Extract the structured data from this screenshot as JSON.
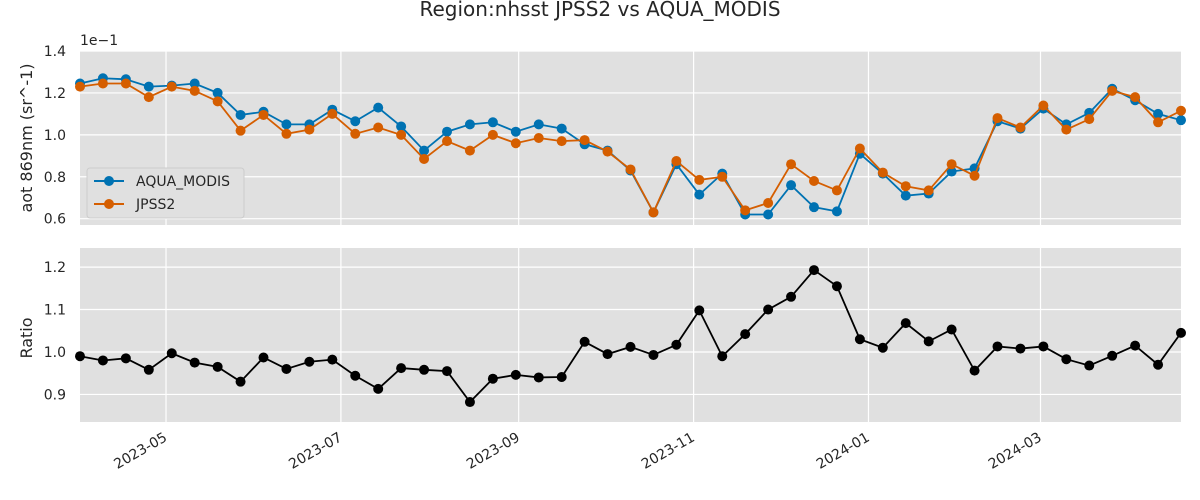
{
  "chart_data": {
    "type": "line",
    "title": "Region:nhsst JPSS2 vs AQUA_MODIS",
    "x": [
      "2023-04-01",
      "2023-04-09",
      "2023-04-17",
      "2023-04-25",
      "2023-05-03",
      "2023-05-11",
      "2023-05-19",
      "2023-05-27",
      "2023-06-04",
      "2023-06-12",
      "2023-06-20",
      "2023-06-28",
      "2023-07-06",
      "2023-07-14",
      "2023-07-22",
      "2023-07-30",
      "2023-08-07",
      "2023-08-15",
      "2023-08-23",
      "2023-08-31",
      "2023-09-08",
      "2023-09-16",
      "2023-09-24",
      "2023-10-02",
      "2023-10-10",
      "2023-10-18",
      "2023-10-26",
      "2023-11-03",
      "2023-11-11",
      "2023-11-19",
      "2023-11-27",
      "2023-12-05",
      "2023-12-13",
      "2023-12-21",
      "2023-12-29",
      "2024-01-06",
      "2024-01-14",
      "2024-01-22",
      "2024-01-30",
      "2024-02-07",
      "2024-02-15",
      "2024-02-23",
      "2024-03-02",
      "2024-03-10",
      "2024-03-18",
      "2024-03-26",
      "2024-04-03",
      "2024-04-11",
      "2024-04-19"
    ],
    "xticks": [
      "2023-05",
      "2023-07",
      "2023-09",
      "2023-11",
      "2024-01",
      "2024-03"
    ],
    "xlim": [
      "2023-04-01",
      "2024-04-19"
    ],
    "top": {
      "ylabel": "aot 869nm (sr^-1)",
      "offset_label": "1e−1",
      "ylim": [
        0.57,
        1.4
      ],
      "yticks": [
        "1.4",
        "1.2",
        "1.0",
        "0.8",
        "0.6"
      ],
      "legend_position": "center-left",
      "series": [
        {
          "name": "AQUA_MODIS",
          "color": "#0072b2",
          "values": [
            1.245,
            1.27,
            1.265,
            1.23,
            1.235,
            1.245,
            1.2,
            1.095,
            1.11,
            1.05,
            1.05,
            1.12,
            1.065,
            1.13,
            1.04,
            0.925,
            1.015,
            1.05,
            1.06,
            1.015,
            1.05,
            1.03,
            0.955,
            0.925,
            0.83,
            0.63,
            0.86,
            0.715,
            0.815,
            0.62,
            0.62,
            0.76,
            0.655,
            0.635,
            0.91,
            0.815,
            0.71,
            0.72,
            0.825,
            0.84,
            1.065,
            1.03,
            1.125,
            1.05,
            1.105,
            1.22,
            1.165,
            1.1,
            1.07
          ]
        },
        {
          "name": "JPSS2",
          "color": "#d55e00",
          "values": [
            1.23,
            1.245,
            1.245,
            1.18,
            1.23,
            1.21,
            1.16,
            1.02,
            1.095,
            1.005,
            1.025,
            1.1,
            1.005,
            1.035,
            1.0,
            0.885,
            0.97,
            0.925,
            1.0,
            0.96,
            0.985,
            0.97,
            0.975,
            0.92,
            0.835,
            0.63,
            0.875,
            0.785,
            0.8,
            0.64,
            0.675,
            0.86,
            0.78,
            0.735,
            0.935,
            0.82,
            0.755,
            0.735,
            0.86,
            0.805,
            1.08,
            1.035,
            1.14,
            1.025,
            1.075,
            1.21,
            1.18,
            1.06,
            1.115
          ]
        }
      ]
    },
    "bottom": {
      "ylabel": "Ratio",
      "ylim": [
        0.835,
        1.245
      ],
      "yticks": [
        "1.2",
        "1.1",
        "1.0",
        "0.9"
      ],
      "series": [
        {
          "color": "#000000",
          "values": [
            0.99,
            0.98,
            0.985,
            0.958,
            0.997,
            0.975,
            0.965,
            0.93,
            0.987,
            0.96,
            0.977,
            0.982,
            0.944,
            0.913,
            0.962,
            0.958,
            0.955,
            0.882,
            0.937,
            0.946,
            0.94,
            0.941,
            1.024,
            0.995,
            1.012,
            0.993,
            1.017,
            1.098,
            0.99,
            1.042,
            1.1,
            1.13,
            1.193,
            1.155,
            1.03,
            1.01,
            1.068,
            1.025,
            1.053,
            0.956,
            1.013,
            1.008,
            1.013,
            0.983,
            0.968,
            0.991,
            1.015,
            0.97,
            1.045
          ]
        }
      ]
    },
    "grid": true
  }
}
